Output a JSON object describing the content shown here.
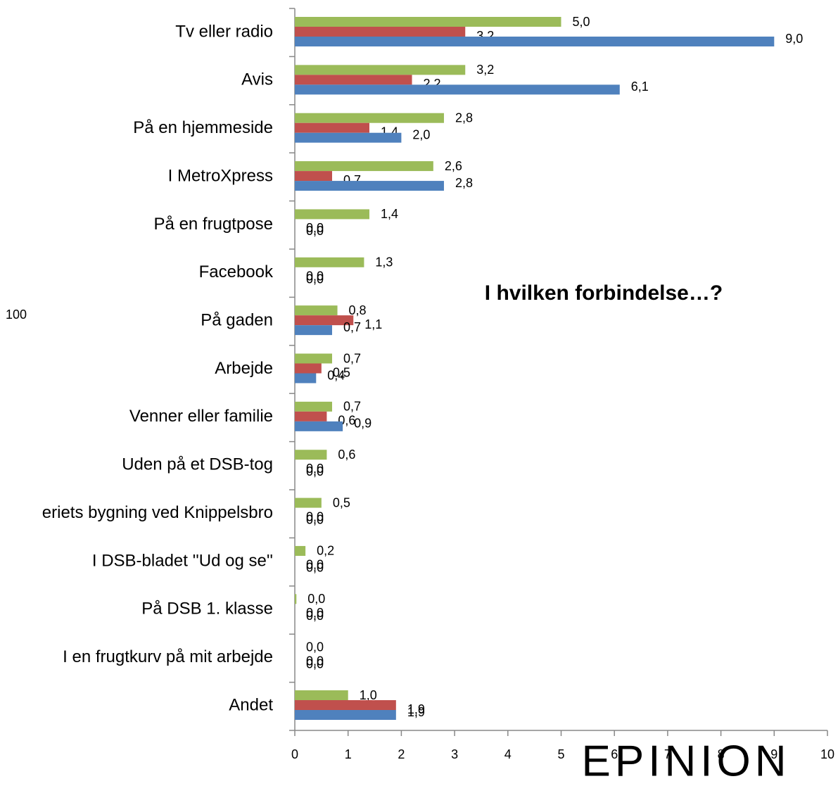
{
  "chart_data": {
    "type": "bar",
    "orientation": "horizontal",
    "title": "I hvilken forbindelse…?",
    "annotations": [
      "100"
    ],
    "logo": "EPINION",
    "categories": [
      "Tv eller radio",
      "Avis",
      "På en hjemmeside",
      "I MetroXpress",
      "På en frugtpose",
      "Facebook",
      "På gaden",
      "Arbejde",
      "Venner eller familie",
      "Uden på et DSB-tog",
      "eriets bygning ved Knippelsbro",
      "I DSB-bladet ''Ud og se''",
      "På DSB 1. klasse",
      "I en frugtkurv på mit arbejde",
      "Andet"
    ],
    "series": [
      {
        "color": "#9bbb59",
        "values": [
          5.0,
          3.2,
          2.8,
          2.6,
          1.4,
          1.3,
          0.8,
          0.7,
          0.7,
          0.6,
          0.5,
          0.2,
          0.03,
          0.0,
          1.0
        ],
        "value_labels": [
          "5,0",
          "3,2",
          "2,8",
          "2,6",
          "1,4",
          "1,3",
          "0,8",
          "0,7",
          "0,7",
          "0,6",
          "0,5",
          "0,2",
          "0,0",
          "0,0",
          "1,0"
        ]
      },
      {
        "color": "#c0504d",
        "values": [
          3.2,
          2.2,
          1.4,
          0.7,
          0.0,
          0.0,
          1.1,
          0.5,
          0.6,
          0.0,
          0.0,
          0.0,
          0.0,
          0.0,
          1.9
        ],
        "value_labels": [
          "3,2",
          "2,2",
          "1,4",
          "0,7",
          "0,0",
          "0,0",
          "1,1",
          "0,5",
          "0,6",
          "0,0",
          "0,0",
          "0,0",
          "0,0",
          "0,0",
          "1,9"
        ]
      },
      {
        "color": "#4f81bd",
        "values": [
          9.0,
          6.1,
          2.0,
          2.8,
          0.0,
          0.0,
          0.7,
          0.4,
          0.9,
          0.0,
          0.0,
          0.0,
          0.0,
          0.0,
          1.9
        ],
        "value_labels": [
          "9,0",
          "6,1",
          "2,0",
          "2,8",
          "0,0",
          "0,0",
          "0,7",
          "0,4",
          "0,9",
          "0,0",
          "0,0",
          "0,0",
          "0,0",
          "0,0",
          "1,9"
        ]
      }
    ],
    "xlim": [
      0,
      10
    ],
    "xticks": [
      0,
      1,
      2,
      3,
      4,
      5,
      6,
      7,
      8,
      9,
      10
    ],
    "grid": false
  }
}
